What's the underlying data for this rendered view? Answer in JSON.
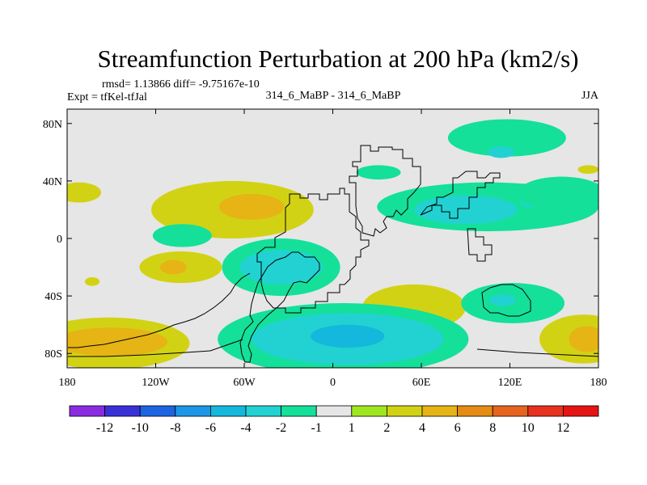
{
  "chart_data": {
    "type": "heatmap",
    "title": "Streamfunction Perturbation at 200 hPa (km2/s)",
    "stats_text": "rmsd= 1.13866 diff= -9.75167e-10",
    "left_label": "Expt = tfKel-tfJal",
    "center_label": "314_6_MaBP - 314_6_MaBP",
    "right_label": "JJA",
    "x_ticks": [
      "180",
      "120W",
      "60W",
      "0",
      "60E",
      "120E",
      "180"
    ],
    "x_tick_values": [
      -180,
      -120,
      -60,
      0,
      60,
      120,
      180
    ],
    "y_ticks": [
      "80N",
      "40N",
      "0",
      "40S",
      "80S"
    ],
    "y_tick_values": [
      80,
      40,
      0,
      -40,
      -80
    ],
    "xlim": [
      -180,
      180
    ],
    "ylim": [
      -90,
      90
    ],
    "grid": false,
    "colorbar": {
      "colors": [
        "#8a2be2",
        "#3a30d8",
        "#1c64e0",
        "#1c96e6",
        "#14b8dc",
        "#22d2d2",
        "#14e09a",
        "#e6e6e6",
        "#a0e61e",
        "#d2d214",
        "#e6b414",
        "#e68c14",
        "#e6641e",
        "#e6321e",
        "#e61414"
      ],
      "labels": [
        "-12",
        "-10",
        "-8",
        "-6",
        "-4",
        "-2",
        "-1",
        "1",
        "2",
        "4",
        "6",
        "8",
        "10",
        "12"
      ]
    },
    "regions": [
      {
        "level": "2",
        "cx": 173,
        "cy": 48,
        "rx": 7,
        "ry": 3
      },
      {
        "level": "2",
        "cx": -172,
        "cy": 32,
        "rx": 15,
        "ry": 7
      },
      {
        "level": "2",
        "cx": -68,
        "cy": 20,
        "rx": 55,
        "ry": 20
      },
      {
        "level": "4",
        "cx": -55,
        "cy": 22,
        "rx": 22,
        "ry": 9
      },
      {
        "level": "-1",
        "cx": -102,
        "cy": 2,
        "rx": 20,
        "ry": 8
      },
      {
        "level": "2",
        "cx": -103,
        "cy": -20,
        "rx": 28,
        "ry": 11
      },
      {
        "level": "4",
        "cx": -108,
        "cy": -20,
        "rx": 9,
        "ry": 5
      },
      {
        "level": "2",
        "cx": -163,
        "cy": -30,
        "rx": 5,
        "ry": 3
      },
      {
        "level": "-1",
        "cx": -35,
        "cy": -20,
        "rx": 40,
        "ry": 20
      },
      {
        "level": "-2",
        "cx": -35,
        "cy": -20,
        "rx": 28,
        "ry": 12
      },
      {
        "level": "-1",
        "cx": 31,
        "cy": 46,
        "rx": 15,
        "ry": 5
      },
      {
        "level": "-1",
        "cx": 105,
        "cy": 22,
        "rx": 75,
        "ry": 17
      },
      {
        "level": "-2",
        "cx": 90,
        "cy": 20,
        "rx": 35,
        "ry": 10
      },
      {
        "level": "-2",
        "cx": 137,
        "cy": 26,
        "rx": 10,
        "ry": 5
      },
      {
        "level": "-1",
        "cx": 155,
        "cy": 31,
        "rx": 30,
        "ry": 12
      },
      {
        "level": "-1",
        "cx": 118,
        "cy": 70,
        "rx": 40,
        "ry": 13
      },
      {
        "level": "-2",
        "cx": 114,
        "cy": 60,
        "rx": 9,
        "ry": 4
      },
      {
        "level": "2",
        "cx": 55,
        "cy": -48,
        "rx": 35,
        "ry": 16
      },
      {
        "level": "-1",
        "cx": 122,
        "cy": -45,
        "rx": 35,
        "ry": 14
      },
      {
        "level": "-2",
        "cx": 115,
        "cy": -43,
        "rx": 9,
        "ry": 4
      },
      {
        "level": "2",
        "cx": -152,
        "cy": -73,
        "rx": 55,
        "ry": 18
      },
      {
        "level": "4",
        "cx": -150,
        "cy": -72,
        "rx": 38,
        "ry": 10
      },
      {
        "level": "2",
        "cx": 170,
        "cy": -70,
        "rx": 30,
        "ry": 17
      },
      {
        "level": "4",
        "cx": 172,
        "cy": -70,
        "rx": 12,
        "ry": 9
      },
      {
        "level": "-1",
        "cx": 7,
        "cy": -70,
        "rx": 85,
        "ry": 25
      },
      {
        "level": "-2",
        "cx": 10,
        "cy": -70,
        "rx": 65,
        "ry": 18
      },
      {
        "level": "-4",
        "cx": 10,
        "cy": -68,
        "rx": 25,
        "ry": 8
      }
    ]
  }
}
